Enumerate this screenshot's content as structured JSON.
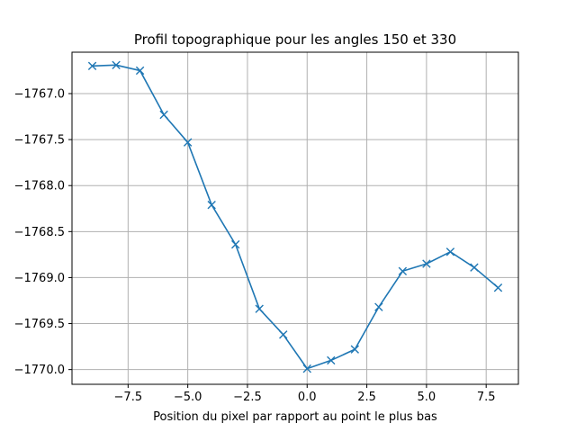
{
  "chart_data": {
    "type": "line",
    "title": "Profil topographique pour les angles 150 et 330",
    "xlabel": "Position du pixel par rapport au point le plus bas",
    "ylabel": "",
    "xlim": [
      -9.85,
      8.85
    ],
    "ylim": [
      -1770.16,
      -1766.55
    ],
    "x_ticks": [
      -7.5,
      -5.0,
      -2.5,
      0.0,
      2.5,
      5.0,
      7.5
    ],
    "x_tick_labels": [
      "−7.5",
      "−5.0",
      "−2.5",
      "0.0",
      "2.5",
      "5.0",
      "7.5"
    ],
    "y_ticks": [
      -1767.0,
      -1767.5,
      -1768.0,
      -1768.5,
      -1769.0,
      -1769.5,
      -1770.0
    ],
    "y_tick_labels": [
      "−1767.0",
      "−1767.5",
      "−1768.0",
      "−1768.5",
      "−1769.0",
      "−1769.5",
      "−1770.0"
    ],
    "grid": true,
    "series": [
      {
        "color": "#1f77b4",
        "marker": "x",
        "x": [
          -9,
          -8,
          -7,
          -6,
          -5,
          -4,
          -3,
          -2,
          -1,
          0,
          1,
          2,
          3,
          4,
          5,
          6,
          7,
          8
        ],
        "y": [
          -1766.7,
          -1766.69,
          -1766.75,
          -1767.23,
          -1767.53,
          -1768.21,
          -1768.64,
          -1769.34,
          -1769.62,
          -1769.99,
          -1769.9,
          -1769.78,
          -1769.32,
          -1768.93,
          -1768.85,
          -1768.72,
          -1768.89,
          -1769.11
        ]
      }
    ]
  }
}
